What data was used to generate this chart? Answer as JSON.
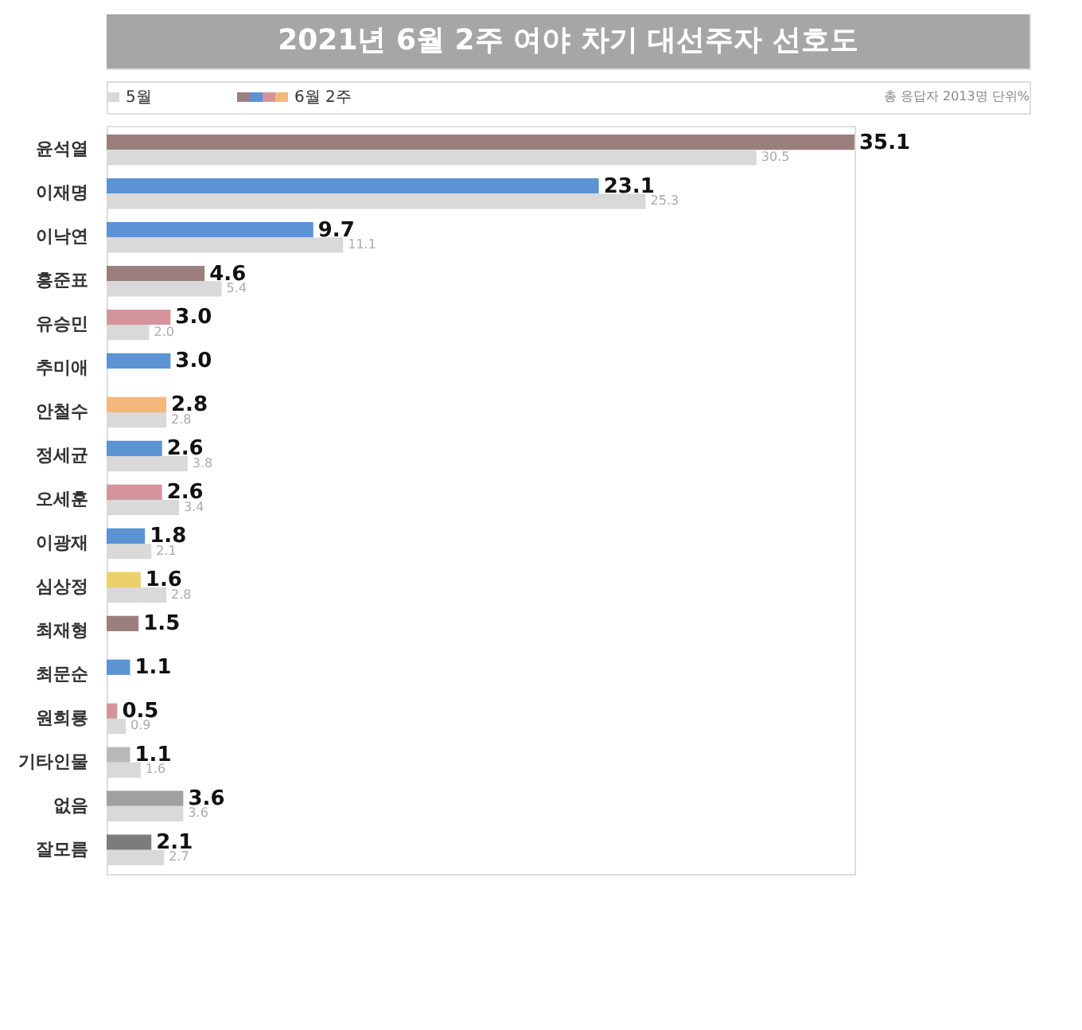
{
  "chart_data": {
    "type": "bar",
    "orientation": "horizontal",
    "title": "2021년 6월 2주 여야 차기 대선주자 선호도",
    "categories": [
      "윤석열",
      "이재명",
      "이낙연",
      "홍준표",
      "유승민",
      "추미애",
      "안철수",
      "정세균",
      "오세훈",
      "이광재",
      "심상정",
      "최재형",
      "최문순",
      "원희룡",
      "기타인물",
      "없음",
      "잘모름"
    ],
    "series": [
      {
        "name": "6월 2주",
        "values": [
          35.1,
          23.1,
          9.7,
          4.6,
          3.0,
          3.0,
          2.8,
          2.6,
          2.6,
          1.8,
          1.6,
          1.5,
          1.1,
          0.5,
          1.1,
          3.6,
          2.1
        ],
        "value_labels": [
          "35.1",
          "23.1",
          "9.7",
          "4.6",
          "3.0",
          "3.0",
          "2.8",
          "2.6",
          "2.6",
          "1.8",
          "1.6",
          "1.5",
          "1.1",
          "0.5",
          "1.1",
          "3.6",
          "2.1"
        ],
        "colors": [
          "#9b7f7f",
          "#5b93d3",
          "#5b93d3",
          "#9b7f7f",
          "#d4949e",
          "#5b93d3",
          "#f4b87c",
          "#5b93d3",
          "#d4949e",
          "#5b93d3",
          "#ecd06c",
          "#9b7f7f",
          "#5b93d3",
          "#d4949e",
          "#b9b9b9",
          "#a0a0a0",
          "#7c7c7c"
        ]
      },
      {
        "name": "5월",
        "color": "#d9d9d9",
        "values": [
          30.5,
          25.3,
          11.1,
          5.4,
          2.0,
          null,
          2.8,
          3.8,
          3.4,
          2.1,
          2.8,
          null,
          null,
          0.9,
          1.6,
          3.6,
          2.7
        ],
        "value_labels": [
          "30.5",
          "25.3",
          "11.1",
          "5.4",
          "2.0",
          null,
          "2.8",
          "3.8",
          "3.4",
          "2.1",
          "2.8",
          null,
          null,
          "0.9",
          "1.6",
          "3.6",
          "2.7"
        ]
      }
    ],
    "legend": "top left",
    "tick_labels": "y",
    "annotations": [
      "총 응답자 2013명  단위%"
    ]
  }
}
